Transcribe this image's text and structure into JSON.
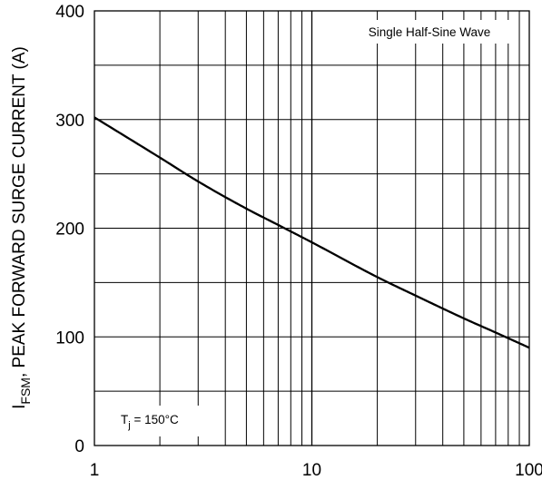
{
  "chart_data": {
    "type": "line",
    "title": "",
    "xlabel": "",
    "ylabel": {
      "main": "I",
      "subscript": "FSM",
      "rest": ", PEAK FORWARD SURGE CURRENT (A)"
    },
    "x_scale": "log",
    "xlim": [
      1,
      100
    ],
    "ylim": [
      0,
      400
    ],
    "grid": true,
    "x_ticks": [
      "1",
      "10",
      "100"
    ],
    "y_ticks": [
      "0",
      "100",
      "200",
      "300",
      "400"
    ],
    "annotations": {
      "waveform": "Single Half-Sine Wave",
      "temperature": {
        "symbol": "T",
        "subscript": "j",
        "value": " = 150°C"
      }
    },
    "series": [
      {
        "x": [
          1,
          2,
          3,
          5,
          7,
          10,
          20,
          30,
          50,
          70,
          100
        ],
        "y": [
          302,
          265,
          243,
          218,
          203,
          187,
          155,
          138,
          117,
          104,
          90
        ]
      }
    ],
    "colors": {
      "line": "#000000",
      "grid": "#000000",
      "axis": "#000000"
    }
  }
}
